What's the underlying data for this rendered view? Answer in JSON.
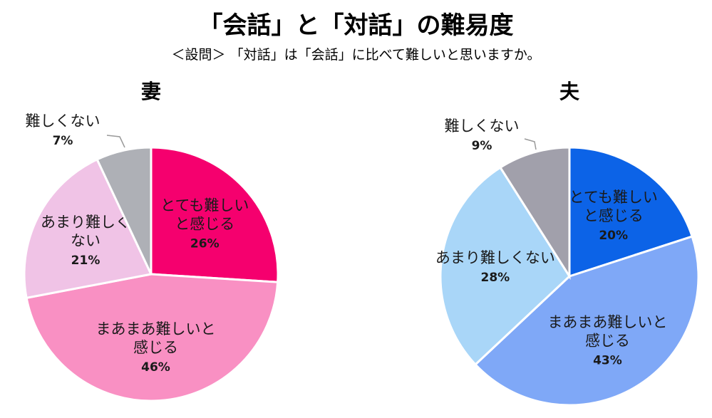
{
  "header": {
    "title": "「会話」と「対話」の難易度",
    "subtitle": "＜設問＞ 「対話」は「会話」に比べて難しいと思いますか。"
  },
  "chart_data": [
    {
      "type": "pie",
      "title": "妻",
      "slices": [
        {
          "label": [
            "とても難しい",
            "と感じる"
          ],
          "value": 26,
          "value_label": "26%",
          "color": "#f5006e"
        },
        {
          "label": [
            "まあまあ難しいと",
            "感じる"
          ],
          "value": 46,
          "value_label": "46%",
          "color": "#f990c3"
        },
        {
          "label": [
            "あまり難しく",
            "ない"
          ],
          "value": 21,
          "value_label": "21%",
          "color": "#f0c3e6"
        },
        {
          "label": [
            "難しくない"
          ],
          "value": 7,
          "value_label": "7%",
          "color": "#aeb0b6"
        }
      ]
    },
    {
      "type": "pie",
      "title": "夫",
      "slices": [
        {
          "label": [
            "とても難しい",
            "と感じる"
          ],
          "value": 20,
          "value_label": "20%",
          "color": "#0c63e7"
        },
        {
          "label": [
            "まあまあ難しいと",
            "感じる"
          ],
          "value": 43,
          "value_label": "43%",
          "color": "#7fa8f7"
        },
        {
          "label": [
            "あまり難しくない"
          ],
          "value": 28,
          "value_label": "28%",
          "color": "#a9d6f8"
        },
        {
          "label": [
            "難しくない"
          ],
          "value": 9,
          "value_label": "9%",
          "color": "#a1a0ab"
        }
      ]
    }
  ]
}
